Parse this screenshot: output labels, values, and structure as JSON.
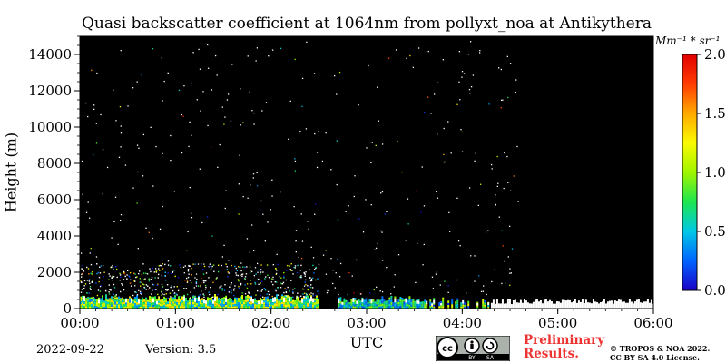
{
  "header": {
    "title": "Quasi backscatter coefficient at 1064nm from pollyxt_noa at Antikythera"
  },
  "footer": {
    "date": "2022-09-22",
    "version": "Version: 3.5",
    "preliminary_line1": "Preliminary",
    "preliminary_line2": "Results.",
    "copyright_line1": "© TROPOS & NOA 2022.",
    "copyright_line2": "CC BY SA 4.0 License.",
    "cc_badge": {
      "cc": "cc",
      "by": "BY",
      "sa": "SA"
    }
  },
  "colorbar": {
    "units": "Mm⁻¹ * sr⁻¹",
    "ticks": [
      "0.0",
      "0.5",
      "1.0",
      "1.5",
      "2.0"
    ],
    "tick_values": [
      0,
      0.5,
      1.0,
      1.5,
      2.0
    ],
    "min": 0,
    "max": 2.0,
    "colormap": [
      "#1a00c8",
      "#0064ff",
      "#00c8e6",
      "#1ee650",
      "#a0f500",
      "#fafa00",
      "#ffaa00",
      "#ff3c00",
      "#e10000"
    ]
  },
  "chart_data": {
    "type": "heatmap",
    "title": "Quasi backscatter coefficient at 1064nm from pollyxt_noa at Antikythera",
    "xlabel": "UTC",
    "ylabel": "Height (m)",
    "x_ticks": [
      "00:00",
      "01:00",
      "02:00",
      "03:00",
      "04:00",
      "05:00",
      "06:00"
    ],
    "x_range_hours": [
      0,
      6
    ],
    "y_ticks": [
      0,
      2000,
      4000,
      6000,
      8000,
      10000,
      12000,
      14000
    ],
    "y_range_m": [
      0,
      15000
    ],
    "background_color": "#000000",
    "grid": false,
    "features": [
      {
        "name": "aerosol layer",
        "x_start_hours": 0.0,
        "x_end_hours": 2.5,
        "height_top_m": 700,
        "value_range": [
          0.3,
          1.4
        ]
      },
      {
        "name": "aerosol layer",
        "x_start_hours": 2.7,
        "x_end_hours": 3.6,
        "height_top_m": 600,
        "value_range": [
          0.2,
          1.0
        ]
      },
      {
        "name": "sparse signal",
        "x_start_hours": 3.6,
        "x_end_hours": 4.3,
        "height_top_m": 500,
        "value_range": [
          0.1,
          1.3
        ]
      },
      {
        "name": "missing data",
        "x_start_hours": 4.3,
        "x_end_hours": 6.0,
        "height_top_m": 700
      }
    ]
  }
}
